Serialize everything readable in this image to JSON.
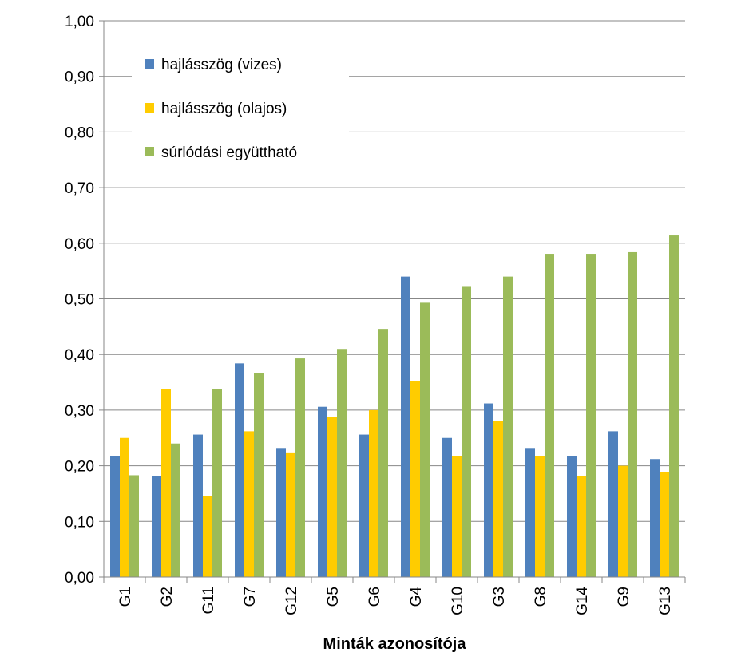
{
  "chart_data": {
    "type": "bar",
    "title": "",
    "xlabel": "Minták azonosítója",
    "ylabel": "",
    "ylim": [
      0,
      1
    ],
    "yticks": [
      "0,00",
      "0,10",
      "0,20",
      "0,30",
      "0,40",
      "0,50",
      "0,60",
      "0,70",
      "0,80",
      "0,90",
      "1,00"
    ],
    "grid": true,
    "legend": "top-left",
    "categories": [
      "G1",
      "G2",
      "G11",
      "G7",
      "G12",
      "G5",
      "G6",
      "G4",
      "G10",
      "G3",
      "G8",
      "G14",
      "G9",
      "G13"
    ],
    "series": [
      {
        "name": "hajlásszög (vizes)",
        "color": "#4F81BD",
        "values": [
          0.218,
          0.182,
          0.256,
          0.384,
          0.232,
          0.306,
          0.256,
          0.54,
          0.25,
          0.312,
          0.232,
          0.218,
          0.262,
          0.212
        ]
      },
      {
        "name": "hajlásszög (olajos)",
        "color": "#FFCC00",
        "values": [
          0.25,
          0.338,
          0.146,
          0.262,
          0.224,
          0.288,
          0.3,
          0.352,
          0.218,
          0.28,
          0.218,
          0.182,
          0.2,
          0.188
        ]
      },
      {
        "name": "súrlódási együttható",
        "color": "#9BBB59",
        "values": [
          0.183,
          0.24,
          0.338,
          0.366,
          0.393,
          0.41,
          0.446,
          0.493,
          0.523,
          0.54,
          0.581,
          0.581,
          0.584,
          0.614
        ]
      }
    ]
  }
}
